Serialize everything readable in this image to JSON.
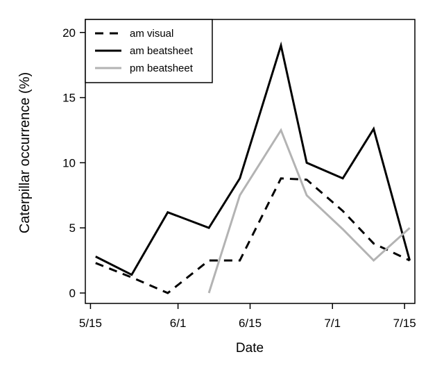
{
  "chart_data": {
    "type": "line",
    "title": "",
    "xlabel": "Date",
    "ylabel": "Caterpillar occurrence (%)",
    "x_unit": "day-of-year",
    "xlim": [
      134,
      198
    ],
    "ylim": [
      -0.8,
      21
    ],
    "x_ticks": [
      {
        "x": 135,
        "label": "5/15"
      },
      {
        "x": 152,
        "label": "6/1"
      },
      {
        "x": 166,
        "label": "6/15"
      },
      {
        "x": 182,
        "label": "7/1"
      },
      {
        "x": 196,
        "label": "7/15"
      }
    ],
    "y_ticks": [
      0,
      5,
      10,
      15,
      20
    ],
    "grid": false,
    "legend_position": "top-left",
    "series": [
      {
        "name": "am visual",
        "color": "#000000",
        "dash": "dashed",
        "x": [
          136,
          143,
          150,
          158,
          164,
          172,
          177,
          184,
          190,
          197
        ],
        "y": [
          2.3,
          1.2,
          0,
          2.5,
          2.5,
          8.8,
          8.7,
          6.3,
          3.8,
          2.5
        ]
      },
      {
        "name": "am beatsheet",
        "color": "#000000",
        "dash": "solid",
        "x": [
          136,
          143,
          150,
          158,
          164,
          172,
          177,
          184,
          190,
          197
        ],
        "y": [
          2.8,
          1.4,
          6.2,
          5.0,
          8.8,
          19.0,
          10.0,
          8.8,
          12.6,
          2.5
        ]
      },
      {
        "name": "pm beatsheet",
        "color": "#b3b3b3",
        "dash": "solid",
        "x": [
          158,
          164,
          172,
          177,
          184,
          190,
          197
        ],
        "y": [
          0,
          7.5,
          12.5,
          7.5,
          4.9,
          2.5,
          5.0
        ]
      }
    ]
  }
}
